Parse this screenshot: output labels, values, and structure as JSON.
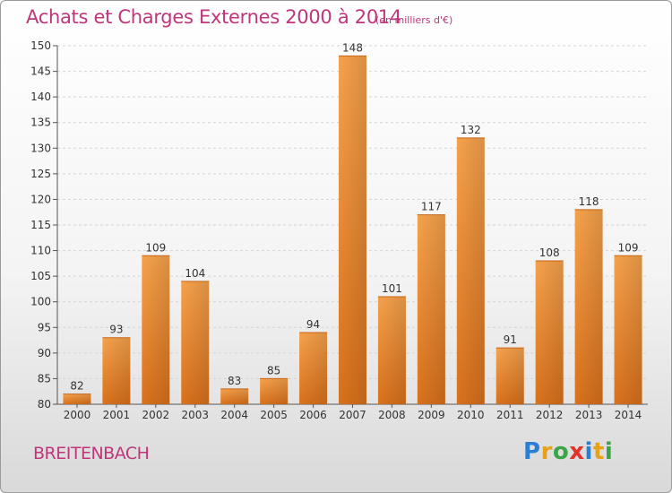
{
  "header": {
    "title": "Achats et Charges Externes 2000 à 2014",
    "unit": "(en milliers d'€)"
  },
  "footer": {
    "place": "BREITENBACH",
    "brand_letters": [
      "P",
      "r",
      "o",
      "x",
      "i",
      "t",
      "i"
    ],
    "brand_colors": [
      "#2a7fd4",
      "#e8a21a",
      "#3aa548",
      "#e0322a",
      "#2a7fd4",
      "#e8a21a",
      "#3aa548"
    ]
  },
  "chart_data": {
    "type": "bar",
    "title": "Achats et Charges Externes 2000 à 2014",
    "subtitle": "(en milliers d'€)",
    "categories": [
      "2000",
      "2001",
      "2002",
      "2003",
      "2004",
      "2005",
      "2006",
      "2007",
      "2008",
      "2009",
      "2010",
      "2011",
      "2012",
      "2013",
      "2014"
    ],
    "values": [
      82,
      93,
      109,
      104,
      83,
      85,
      94,
      148,
      101,
      117,
      132,
      91,
      108,
      118,
      109
    ],
    "value_labels": [
      "82",
      "93",
      "109",
      "104",
      "83",
      "85",
      "94",
      "148",
      "101",
      "117",
      "132",
      "91",
      "108",
      "118",
      "109"
    ],
    "yticks": [
      "80",
      "85",
      "90",
      "95",
      "100",
      "105",
      "110",
      "115",
      "120",
      "125",
      "130",
      "135",
      "140",
      "145",
      "150"
    ],
    "ylim": [
      80,
      150
    ],
    "xlabel": "",
    "ylabel": "",
    "grid": true,
    "bar_color": "#f0923a"
  }
}
